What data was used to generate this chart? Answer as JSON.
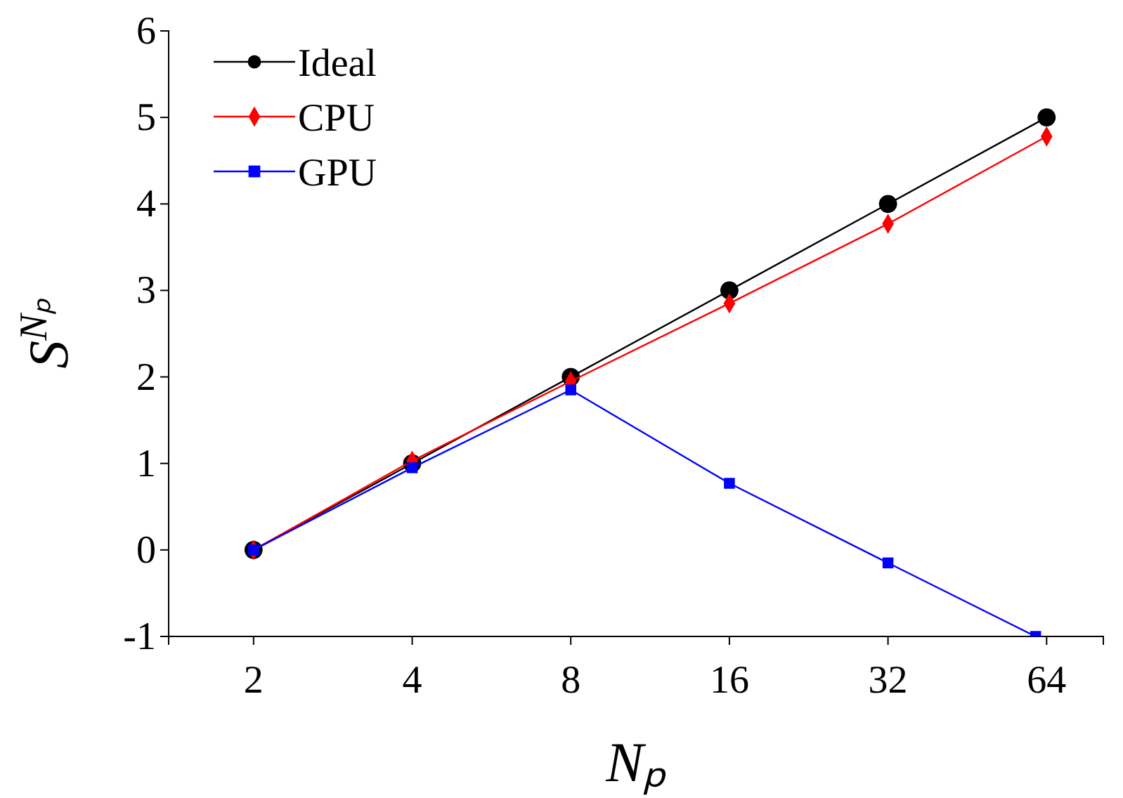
{
  "chart_data": {
    "type": "line",
    "xlabel": "Nₚ",
    "ylabel": "S$^{Nₚ}$",
    "x": [
      2,
      4,
      8,
      16,
      32,
      64
    ],
    "log": "x",
    "xlim": [
      1.38,
      82
    ],
    "xticks": [
      2,
      4,
      8,
      16,
      32,
      64
    ],
    "ylim": [
      -1,
      6
    ],
    "yticks": [
      -1,
      0,
      1,
      2,
      3,
      4,
      5,
      6
    ],
    "grid": false,
    "legend": "top left",
    "series": [
      {
        "name": "Ideal",
        "color": "#000000",
        "marker": "circle",
        "values": [
          0,
          1,
          2,
          3,
          4,
          5
        ]
      },
      {
        "name": "CPU",
        "color": "#ff0000",
        "marker": "diamond",
        "values": [
          0,
          1.03,
          1.95,
          2.85,
          3.77,
          4.78
        ]
      },
      {
        "name": "GPU",
        "color": "#0000ff",
        "marker": "square",
        "x": [
          2,
          4,
          8,
          16,
          32,
          61
        ],
        "values": [
          0,
          0.95,
          1.85,
          0.77,
          -0.15,
          -1
        ]
      }
    ]
  }
}
